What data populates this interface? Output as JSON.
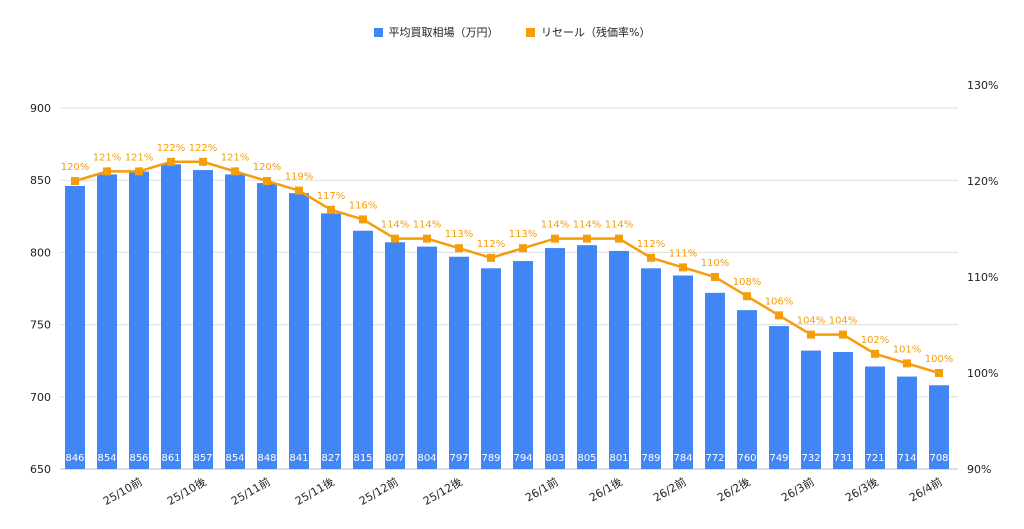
{
  "chart_data": {
    "type": "bar+line",
    "legend_position": "top",
    "grid": true,
    "categories": [
      "",
      "",
      "25/10前",
      "",
      "25/10後",
      "",
      "25/11前",
      "",
      "25/11後",
      "",
      "25/12前",
      "",
      "25/12後",
      "",
      "",
      "26/1前",
      "",
      "26/1後",
      "",
      "26/2前",
      "",
      "26/2後",
      "",
      "26/3前",
      "",
      "26/3後",
      "",
      "26/4前"
    ],
    "series": [
      {
        "name": "平均買取相場（万円）",
        "type": "bar",
        "axis": "left",
        "color": "#4285f4",
        "values": [
          846,
          854,
          856,
          861,
          857,
          854,
          848,
          841,
          827,
          815,
          807,
          804,
          797,
          789,
          794,
          803,
          805,
          801,
          789,
          784,
          772,
          760,
          749,
          732,
          731,
          721,
          714,
          708
        ]
      },
      {
        "name": "リセール（残価率%）",
        "type": "line",
        "axis": "right",
        "color": "#f59c0b",
        "values": [
          120,
          121,
          121,
          122,
          122,
          121,
          120,
          119,
          117,
          116,
          114,
          114,
          113,
          112,
          113,
          114,
          114,
          114,
          112,
          111,
          110,
          108,
          106,
          104,
          104,
          102,
          101,
          100
        ]
      }
    ],
    "left_axis": {
      "ylim": [
        650,
        916
      ],
      "ticks": [
        "650",
        "700",
        "750",
        "800",
        "850",
        "900"
      ]
    },
    "right_axis": {
      "ylim": [
        90,
        130
      ],
      "ticks": [
        "90%",
        "100%",
        "110%",
        "120%",
        "130%"
      ]
    }
  }
}
